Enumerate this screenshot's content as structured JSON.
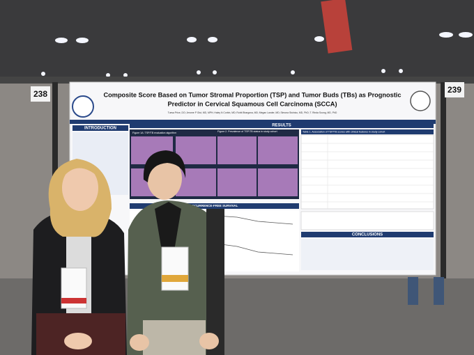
{
  "booth": {
    "left_number": "238",
    "right_number": "239"
  },
  "poster": {
    "title_line1": "Composite Score Based on Tumor Stromal Proportion (TSP) and Tumor Buds (TBs) as Prognostic",
    "title_line2": "Predictor in Cervical Squamous Cell Carcinoma (SCCA)",
    "authors": "Tuesa Price, DO; Jerome P Gist, MD, MPH; Haley N Corbin, MD; Rohit Bhargava, MD; Megan Lander, MD; Simona Stolnicu, MD, PhD; T. Rinda Soong, MD, PhD",
    "sections": {
      "introduction": "INTRODUCTION",
      "results": "RESULTS",
      "conclusions": "CONCLUSIONS"
    },
    "figure1": "Figure 1A: TSP/TB evaluation algorithm",
    "figure2": "Figure 2. Prevalence of TSP/TB status in study cohort",
    "table1": "Table 1. Association of TSP/TB scores with clinical features in study cohort",
    "survival": "RECURRENCE-FREE SURVIVAL"
  }
}
